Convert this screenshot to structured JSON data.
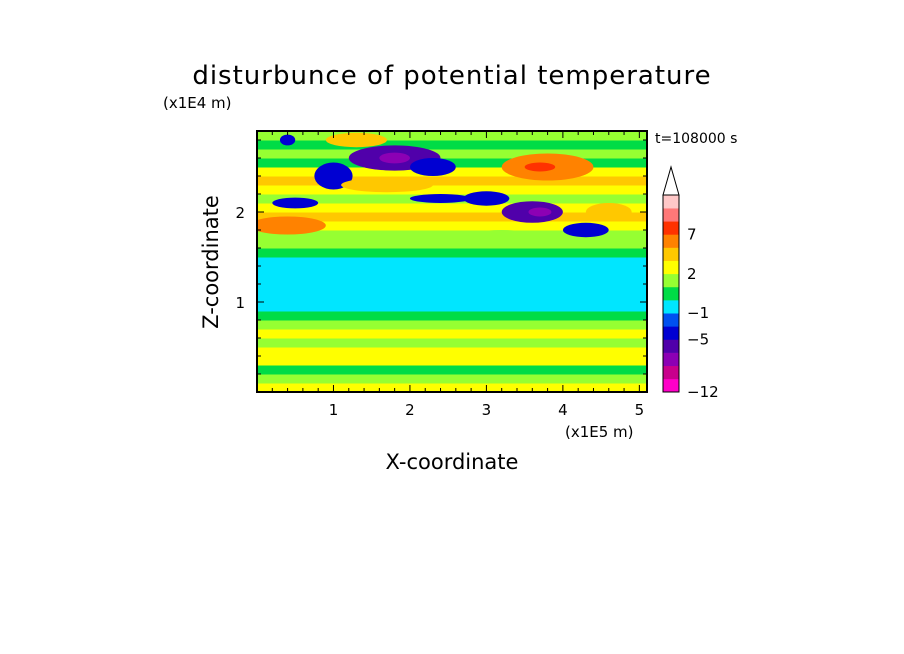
{
  "chart_data": {
    "type": "heatmap",
    "title": "disturbunce of potential temperature",
    "time_label": "t=108000 s",
    "xlabel": "X-coordinate",
    "ylabel": "Z-coordinate",
    "x_unit": "(x1E5 m)",
    "y_unit": "(x1E4 m)",
    "xlim": [
      0,
      5.1
    ],
    "ylim": [
      0,
      2.9
    ],
    "x_ticks": [
      1,
      2,
      3,
      4,
      5
    ],
    "y_ticks": [
      1,
      2
    ],
    "colorbar": {
      "levels": [
        -12,
        -11,
        -9,
        -7,
        -5,
        -3,
        -1,
        0,
        1,
        2,
        3,
        5,
        7,
        9,
        11
      ],
      "colors": [
        "#ff00c8",
        "#c8008c",
        "#8c00b4",
        "#5000aa",
        "#0000d2",
        "#0050f0",
        "#00e6ff",
        "#00dc46",
        "#96ff32",
        "#ffff00",
        "#ffc800",
        "#ff8200",
        "#ff3200",
        "#ff7878",
        "#ffc8c8"
      ],
      "tick_labels": [
        "7",
        "2",
        "−1",
        "−5",
        "−12"
      ],
      "tick_values": [
        7,
        2,
        -1,
        -5,
        -12
      ],
      "extend": "max"
    },
    "bands": [
      {
        "z": 0.05,
        "value": 2.5
      },
      {
        "z": 0.15,
        "value": 1.5
      },
      {
        "z": 0.25,
        "value": 0.5
      },
      {
        "z": 0.35,
        "value": 2.5
      },
      {
        "z": 0.45,
        "value": 2.5
      },
      {
        "z": 0.55,
        "value": 1.5
      },
      {
        "z": 0.65,
        "value": 2.5
      },
      {
        "z": 0.75,
        "value": 1.5
      },
      {
        "z": 0.85,
        "value": 0.5
      },
      {
        "z": 0.95,
        "value": -0.5
      },
      {
        "z": 1.05,
        "value": -0.5
      },
      {
        "z": 1.15,
        "value": -0.5
      },
      {
        "z": 1.25,
        "value": -0.5
      },
      {
        "z": 1.35,
        "value": -0.5
      },
      {
        "z": 1.45,
        "value": -0.5
      },
      {
        "z": 1.55,
        "value": 0.5
      },
      {
        "z": 1.65,
        "value": 1.5
      },
      {
        "z": 1.75,
        "value": 1.5
      },
      {
        "z": 1.85,
        "value": 2.5
      },
      {
        "z": 1.95,
        "value": 4.0
      },
      {
        "z": 2.05,
        "value": 2.5
      },
      {
        "z": 2.15,
        "value": 1.5
      },
      {
        "z": 2.25,
        "value": 2.5
      },
      {
        "z": 2.35,
        "value": 4.0
      },
      {
        "z": 2.45,
        "value": 2.5
      },
      {
        "z": 2.55,
        "value": 0.5
      },
      {
        "z": 2.65,
        "value": 1.5
      },
      {
        "z": 2.75,
        "value": 0.5
      },
      {
        "z": 2.85,
        "value": 1.5
      }
    ],
    "features": [
      {
        "x": 0.4,
        "z": 1.85,
        "rx": 0.5,
        "rz": 0.1,
        "value": 6.0
      },
      {
        "x": 0.5,
        "z": 2.1,
        "rx": 0.3,
        "rz": 0.06,
        "value": -4.0
      },
      {
        "x": 1.0,
        "z": 2.4,
        "rx": 0.25,
        "rz": 0.15,
        "value": -4.0
      },
      {
        "x": 1.8,
        "z": 2.6,
        "rx": 0.6,
        "rz": 0.14,
        "value": -6.0
      },
      {
        "x": 1.8,
        "z": 2.6,
        "rx": 0.2,
        "rz": 0.06,
        "value": -8.0
      },
      {
        "x": 2.3,
        "z": 2.5,
        "rx": 0.3,
        "rz": 0.1,
        "value": -4.0
      },
      {
        "x": 1.7,
        "z": 2.3,
        "rx": 0.6,
        "rz": 0.08,
        "value": 4.0
      },
      {
        "x": 2.4,
        "z": 2.15,
        "rx": 0.4,
        "rz": 0.05,
        "value": -4.0
      },
      {
        "x": 3.0,
        "z": 2.15,
        "rx": 0.3,
        "rz": 0.08,
        "value": -4.0
      },
      {
        "x": 3.6,
        "z": 2.0,
        "rx": 0.4,
        "rz": 0.12,
        "value": -6.0
      },
      {
        "x": 3.7,
        "z": 2.0,
        "rx": 0.15,
        "rz": 0.05,
        "value": -8.0
      },
      {
        "x": 3.8,
        "z": 2.5,
        "rx": 0.6,
        "rz": 0.15,
        "value": 6.0
      },
      {
        "x": 3.7,
        "z": 2.5,
        "rx": 0.2,
        "rz": 0.05,
        "value": 8.0
      },
      {
        "x": 4.3,
        "z": 1.8,
        "rx": 0.3,
        "rz": 0.08,
        "value": -4.0
      },
      {
        "x": 4.6,
        "z": 2.0,
        "rx": 0.3,
        "rz": 0.1,
        "value": 4.0
      },
      {
        "x": 1.3,
        "z": 2.8,
        "rx": 0.4,
        "rz": 0.08,
        "value": 4.0
      },
      {
        "x": 0.4,
        "z": 2.8,
        "rx": 0.1,
        "rz": 0.06,
        "value": -4.0
      },
      {
        "x": 3.2,
        "z": 1.7,
        "rx": 0.5,
        "rz": 0.1,
        "value": 1.5
      }
    ]
  }
}
